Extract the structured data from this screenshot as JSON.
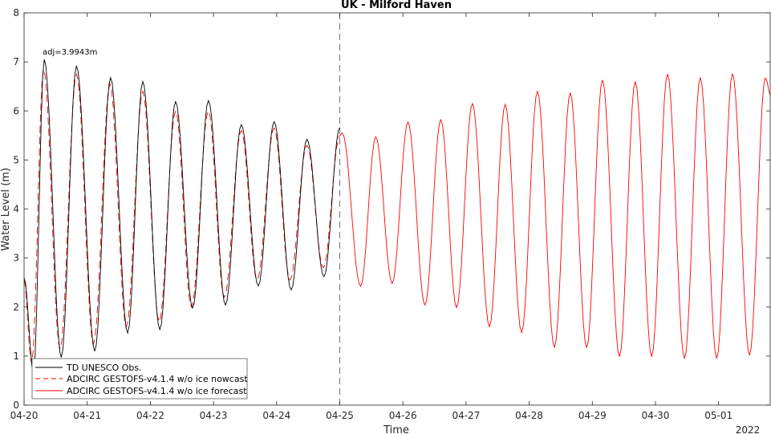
{
  "chart_data": {
    "type": "line",
    "title": "UK - Milford Haven",
    "xlabel": "Time",
    "ylabel": "Water Level (m)",
    "year_label": "2022",
    "annotation": "adj=3.9943m",
    "ylim": [
      0,
      8
    ],
    "xlim": [
      "04-20",
      "05-01 20:00"
    ],
    "yticks": [
      "0",
      "1",
      "2",
      "3",
      "4",
      "5",
      "6",
      "7",
      "8"
    ],
    "xticks": [
      "04-20",
      "04-21",
      "04-22",
      "04-23",
      "04-24",
      "04-25",
      "04-26",
      "04-27",
      "04-28",
      "04-29",
      "04-30",
      "05-01"
    ],
    "nowcast_end": "04-25",
    "legend_position": "bottom-left",
    "series": [
      {
        "name": "TD UNESCO Obs.",
        "color": "#000000",
        "style": "solid",
        "x_days": [
          0.0,
          0.15,
          0.32,
          0.59,
          0.83,
          1.12,
          1.37,
          1.64,
          1.88,
          2.15,
          2.4,
          2.67,
          2.92,
          3.19,
          3.44,
          3.71,
          3.96,
          4.23,
          4.48,
          4.75,
          5.0
        ],
        "y": [
          2.6,
          0.67,
          7.05,
          0.97,
          6.92,
          1.1,
          6.68,
          1.47,
          6.6,
          1.54,
          6.19,
          1.98,
          6.21,
          2.04,
          5.72,
          2.43,
          5.78,
          2.35,
          5.42,
          2.62,
          5.66
        ]
      },
      {
        "name": "ADCIRC GESTOFS-v4.1.4 w/o ice nowcast",
        "color": "#ff0000",
        "style": "dashed",
        "x_days": [
          0.0,
          0.12,
          0.31,
          0.57,
          0.83,
          1.1,
          1.36,
          1.62,
          1.88,
          2.14,
          2.4,
          2.65,
          2.92,
          3.17,
          3.44,
          3.69,
          3.96,
          4.21,
          4.48,
          4.74,
          5.0
        ],
        "y": [
          2.55,
          0.85,
          6.85,
          1.15,
          6.75,
          1.25,
          6.55,
          1.6,
          6.4,
          1.7,
          6.0,
          2.0,
          6.0,
          2.2,
          5.6,
          2.55,
          5.65,
          2.55,
          5.3,
          2.8,
          5.5
        ]
      },
      {
        "name": "ADCIRC GESTOFS-v4.1.4 w/o ice forecast",
        "color": "#ff0000",
        "style": "solid",
        "x_days": [
          5.0,
          5.04,
          5.33,
          5.57,
          5.83,
          6.08,
          6.35,
          6.6,
          6.85,
          7.1,
          7.37,
          7.62,
          7.88,
          8.13,
          8.4,
          8.65,
          8.91,
          9.16,
          9.43,
          9.68,
          9.94,
          10.19,
          10.46,
          10.71,
          10.97,
          11.22,
          11.49,
          11.74,
          11.83
        ],
        "y": [
          5.5,
          5.55,
          2.42,
          5.47,
          2.48,
          5.77,
          2.04,
          5.82,
          1.99,
          6.15,
          1.6,
          6.13,
          1.48,
          6.4,
          1.18,
          6.37,
          1.17,
          6.63,
          0.99,
          6.6,
          0.99,
          6.75,
          0.95,
          6.68,
          0.95,
          6.76,
          1.02,
          6.67,
          6.3
        ]
      }
    ]
  }
}
